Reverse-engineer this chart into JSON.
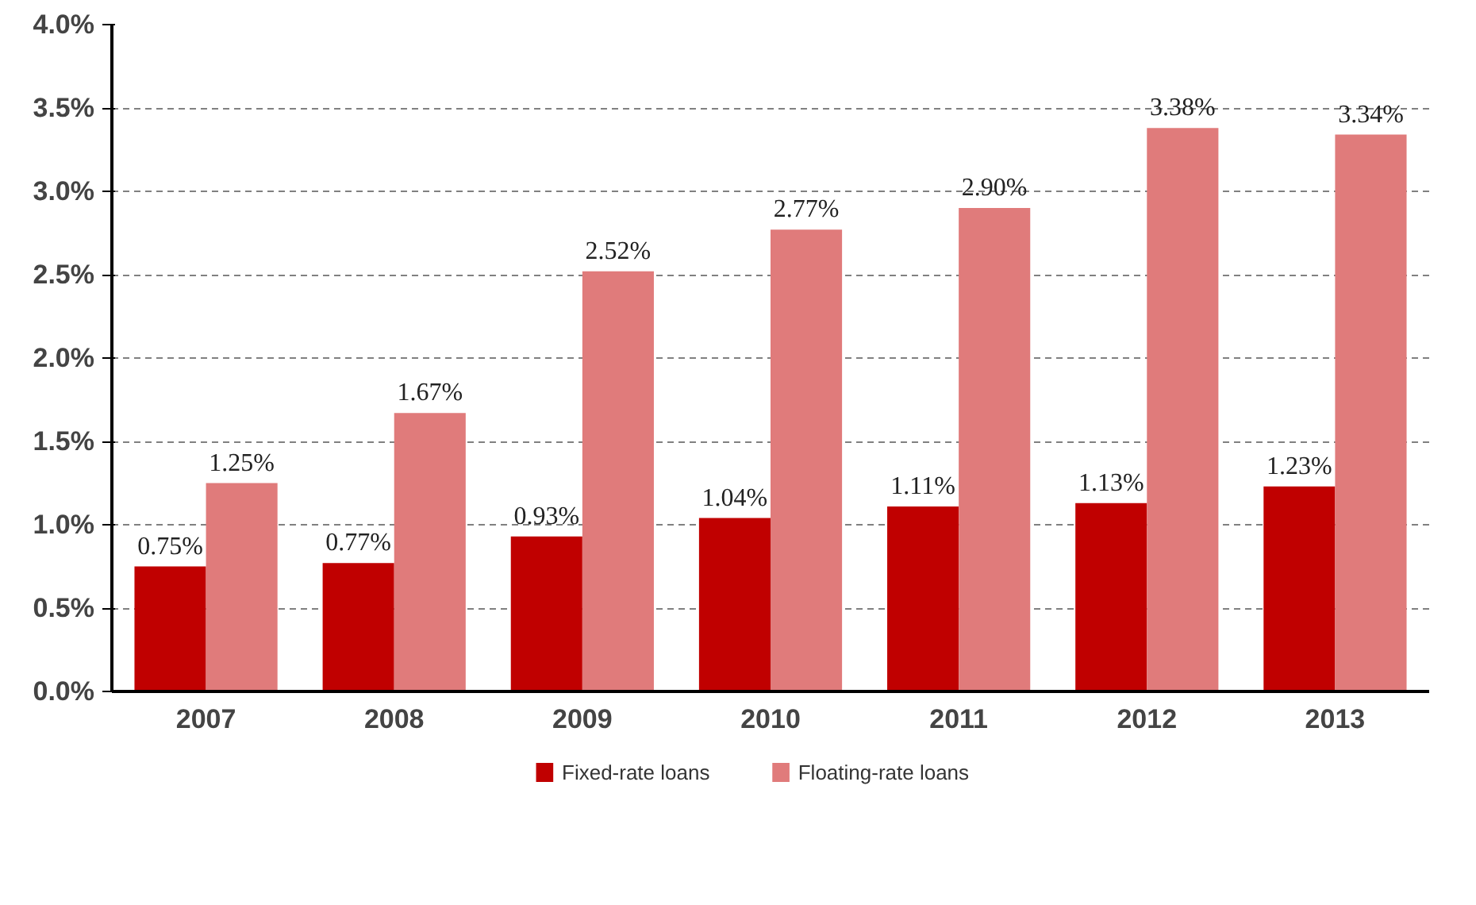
{
  "chart_data": {
    "type": "bar",
    "categories": [
      "2007",
      "2008",
      "2009",
      "2010",
      "2011",
      "2012",
      "2013"
    ],
    "series": [
      {
        "name": "Fixed-rate loans",
        "color": "#c00000",
        "values": [
          0.75,
          0.77,
          0.93,
          1.04,
          1.11,
          1.13,
          1.23
        ],
        "value_labels": [
          "0.75%",
          "0.77%",
          "0.93%",
          "1.04%",
          "1.11%",
          "1.13%",
          "1.23%"
        ]
      },
      {
        "name": "Floating-rate loans",
        "color": "#e07b7b",
        "values": [
          1.25,
          1.67,
          2.52,
          2.77,
          2.9,
          3.38,
          3.34
        ],
        "value_labels": [
          "1.25%",
          "1.67%",
          "2.52%",
          "2.77%",
          "2.90%",
          "3.38%",
          "3.34%"
        ]
      }
    ],
    "ylim": [
      0,
      4
    ],
    "yticks": [
      {
        "value": 0,
        "label": "0.0%"
      },
      {
        "value": 0.5,
        "label": "0.5%"
      },
      {
        "value": 1,
        "label": "1.0%"
      },
      {
        "value": 1.5,
        "label": "1.5%"
      },
      {
        "value": 2,
        "label": "2.0%"
      },
      {
        "value": 2.5,
        "label": "2.5%"
      },
      {
        "value": 3,
        "label": "3.0%"
      },
      {
        "value": 3.5,
        "label": "3.5%"
      },
      {
        "value": 4,
        "label": "4.0%"
      }
    ],
    "grid": "y",
    "legend": "bottom"
  }
}
